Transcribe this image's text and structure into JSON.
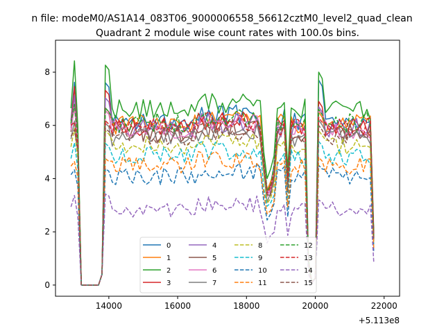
{
  "chart_data": {
    "type": "line",
    "suptitle": "n file: modeM0/AS1A14_083T06_9000006558_56612cztM0_level2_quad_clean",
    "title": "Quadrant 2 module wise count rates with 100.0s bins.",
    "xlabel": "",
    "ylabel": "",
    "x_offset_label": "+5.113e8",
    "xlim": [
      12450,
      22450
    ],
    "ylim": [
      -0.42,
      9.2
    ],
    "xticks": [
      14000,
      16000,
      18000,
      20000,
      22000
    ],
    "xtick_labels": [
      "14000",
      "16000",
      "18000",
      "20000",
      "22000"
    ],
    "yticks": [
      0,
      2,
      4,
      6,
      8
    ],
    "ytick_labels": [
      "0",
      "2",
      "4",
      "6",
      "8"
    ],
    "grid": false,
    "legend": {
      "placement": "lower center",
      "ncol": 4
    },
    "series": [
      {
        "name": "0",
        "level": 6.2,
        "peak_in": 8.0,
        "peak_out": 7.7,
        "dip": 3.7,
        "color": "#1f77b4",
        "dash": "solid"
      },
      {
        "name": "1",
        "level": 6.05,
        "peak_in": 6.9,
        "peak_out": 6.5,
        "dip": 3.6,
        "color": "#ff7f0e",
        "dash": "solid"
      },
      {
        "name": "2",
        "level": 6.6,
        "peak_in": 8.7,
        "peak_out": 8.0,
        "dip": 4.1,
        "color": "#2ca02c",
        "dash": "solid"
      },
      {
        "name": "3",
        "level": 5.95,
        "peak_in": 7.7,
        "peak_out": 6.9,
        "dip": 3.5,
        "color": "#d62728",
        "dash": "solid"
      },
      {
        "name": "4",
        "level": 5.9,
        "peak_in": 7.4,
        "peak_out": 6.7,
        "dip": 3.4,
        "color": "#9467bd",
        "dash": "solid"
      },
      {
        "name": "5",
        "level": 5.75,
        "peak_in": 7.0,
        "peak_out": 6.6,
        "dip": 3.3,
        "color": "#8c564b",
        "dash": "solid"
      },
      {
        "name": "6",
        "level": 5.85,
        "peak_in": 6.9,
        "peak_out": 6.6,
        "dip": 3.4,
        "color": "#e377c2",
        "dash": "solid"
      },
      {
        "name": "7",
        "level": 5.55,
        "peak_in": 6.4,
        "peak_out": 6.2,
        "dip": 3.2,
        "color": "#7f7f7f",
        "dash": "solid"
      },
      {
        "name": "8",
        "level": 5.25,
        "peak_in": 6.1,
        "peak_out": 5.8,
        "dip": 3.0,
        "color": "#bcbd22",
        "dash": "dashed"
      },
      {
        "name": "9",
        "level": 4.85,
        "peak_in": 5.6,
        "peak_out": 5.4,
        "dip": 2.9,
        "color": "#17becf",
        "dash": "dashed"
      },
      {
        "name": "10",
        "level": 4.1,
        "peak_in": 4.6,
        "peak_out": 4.5,
        "dip": 2.5,
        "color": "#1f77b4",
        "dash": "dashed"
      },
      {
        "name": "11",
        "level": 4.5,
        "peak_in": 5.0,
        "peak_out": 4.8,
        "dip": 2.7,
        "color": "#ff7f0e",
        "dash": "dashed"
      },
      {
        "name": "12",
        "level": 6.1,
        "peak_in": 7.0,
        "peak_out": 6.6,
        "dip": 3.6,
        "color": "#2ca02c",
        "dash": "dashed"
      },
      {
        "name": "13",
        "level": 5.95,
        "peak_in": 6.5,
        "peak_out": 6.3,
        "dip": 3.5,
        "color": "#d62728",
        "dash": "dashed"
      },
      {
        "name": "14",
        "level": 2.85,
        "peak_in": 3.6,
        "peak_out": 3.2,
        "dip": 1.7,
        "color": "#9467bd",
        "dash": "dashed"
      },
      {
        "name": "15",
        "level": 5.6,
        "peak_in": 6.2,
        "peak_out": 6.0,
        "dip": 3.3,
        "color": "#8c564b",
        "dash": "dashed"
      }
    ]
  }
}
